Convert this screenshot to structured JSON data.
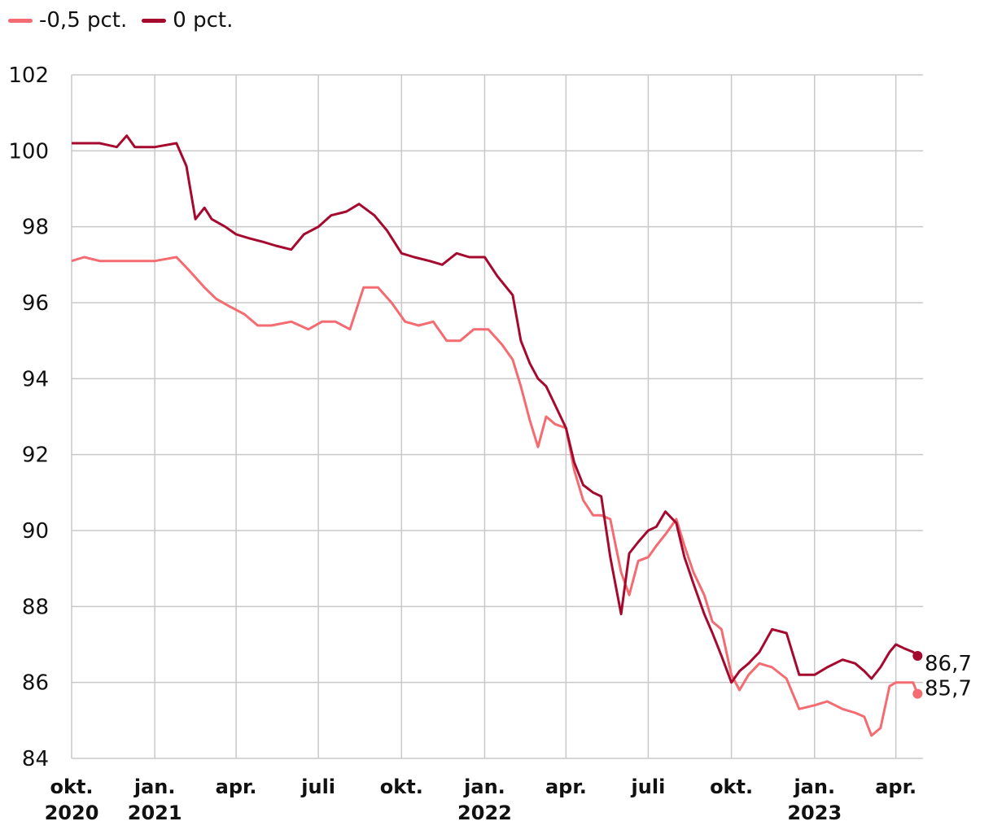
{
  "chart_data": {
    "type": "line",
    "legend": {
      "placement": "top-left",
      "items": [
        {
          "label": "-0,5 pct.",
          "color": "#f46b72"
        },
        {
          "label": "0 pct.",
          "color": "#a5092e"
        }
      ]
    },
    "ylim": [
      84,
      102
    ],
    "yticks": [
      84,
      86,
      88,
      90,
      92,
      94,
      96,
      98,
      100,
      102
    ],
    "xlim": [
      "2020-10-01",
      "2023-05-01"
    ],
    "xticks": [
      {
        "date": "2020-10-01",
        "label": "okt.",
        "year": "2020"
      },
      {
        "date": "2021-01-01",
        "label": "jan.",
        "year": "2021"
      },
      {
        "date": "2021-04-01",
        "label": "apr.",
        "year": ""
      },
      {
        "date": "2021-07-01",
        "label": "juli",
        "year": ""
      },
      {
        "date": "2021-10-01",
        "label": "okt.",
        "year": ""
      },
      {
        "date": "2022-01-01",
        "label": "jan.",
        "year": "2022"
      },
      {
        "date": "2022-04-01",
        "label": "apr.",
        "year": ""
      },
      {
        "date": "2022-07-01",
        "label": "juli",
        "year": ""
      },
      {
        "date": "2022-10-01",
        "label": "okt.",
        "year": ""
      },
      {
        "date": "2023-01-01",
        "label": "jan.",
        "year": "2023"
      },
      {
        "date": "2023-04-01",
        "label": "apr.",
        "year": ""
      }
    ],
    "grid": true,
    "series": [
      {
        "name": "-0,5 pct.",
        "color": "#f46b72",
        "end_label": "85,7",
        "x": [
          "2020-10-01",
          "2020-10-15",
          "2020-11-01",
          "2020-12-01",
          "2021-01-01",
          "2021-01-25",
          "2021-02-10",
          "2021-02-25",
          "2021-03-10",
          "2021-03-25",
          "2021-04-10",
          "2021-04-25",
          "2021-05-10",
          "2021-06-01",
          "2021-06-20",
          "2021-07-05",
          "2021-07-20",
          "2021-08-05",
          "2021-08-20",
          "2021-09-05",
          "2021-09-20",
          "2021-10-05",
          "2021-10-20",
          "2021-11-05",
          "2021-11-20",
          "2021-12-05",
          "2021-12-20",
          "2022-01-05",
          "2022-01-20",
          "2022-02-01",
          "2022-02-10",
          "2022-02-20",
          "2022-03-01",
          "2022-03-10",
          "2022-03-20",
          "2022-04-01",
          "2022-04-10",
          "2022-04-20",
          "2022-05-01",
          "2022-05-10",
          "2022-05-20",
          "2022-06-01",
          "2022-06-10",
          "2022-06-20",
          "2022-07-01",
          "2022-07-10",
          "2022-07-20",
          "2022-08-01",
          "2022-08-10",
          "2022-08-20",
          "2022-09-01",
          "2022-09-10",
          "2022-09-20",
          "2022-10-01",
          "2022-10-10",
          "2022-10-20",
          "2022-11-01",
          "2022-11-15",
          "2022-12-01",
          "2022-12-15",
          "2023-01-01",
          "2023-01-15",
          "2023-02-01",
          "2023-02-15",
          "2023-02-25",
          "2023-03-05",
          "2023-03-15",
          "2023-03-25",
          "2023-04-01",
          "2023-04-10",
          "2023-04-20",
          "2023-04-25"
        ],
        "values": [
          97.1,
          97.2,
          97.1,
          97.1,
          97.1,
          97.2,
          96.8,
          96.4,
          96.1,
          95.9,
          95.7,
          95.4,
          95.4,
          95.5,
          95.3,
          95.5,
          95.5,
          95.3,
          96.4,
          96.4,
          96.0,
          95.5,
          95.4,
          95.5,
          95.0,
          95.0,
          95.3,
          95.3,
          94.9,
          94.5,
          93.8,
          92.9,
          92.2,
          93.0,
          92.8,
          92.7,
          91.6,
          90.8,
          90.4,
          90.4,
          90.3,
          88.9,
          88.3,
          89.2,
          89.3,
          89.6,
          89.9,
          90.3,
          89.6,
          88.9,
          88.3,
          87.6,
          87.4,
          86.2,
          85.8,
          86.2,
          86.5,
          86.4,
          86.1,
          85.3,
          85.4,
          85.5,
          85.3,
          85.2,
          85.1,
          84.6,
          84.8,
          85.9,
          86.0,
          86.0,
          86.0,
          85.7
        ]
      },
      {
        "name": "0 pct.",
        "color": "#a5092e",
        "end_label": "86,7",
        "x": [
          "2020-10-01",
          "2020-10-15",
          "2020-11-01",
          "2020-11-20",
          "2020-12-01",
          "2020-12-10",
          "2020-12-20",
          "2021-01-01",
          "2021-01-25",
          "2021-02-05",
          "2021-02-15",
          "2021-02-25",
          "2021-03-05",
          "2021-03-20",
          "2021-04-01",
          "2021-04-15",
          "2021-05-01",
          "2021-05-15",
          "2021-06-01",
          "2021-06-15",
          "2021-07-01",
          "2021-07-15",
          "2021-08-01",
          "2021-08-15",
          "2021-09-01",
          "2021-09-15",
          "2021-10-01",
          "2021-10-15",
          "2021-11-01",
          "2021-11-15",
          "2021-12-01",
          "2021-12-15",
          "2022-01-01",
          "2022-01-15",
          "2022-02-01",
          "2022-02-10",
          "2022-02-20",
          "2022-03-01",
          "2022-03-10",
          "2022-03-20",
          "2022-04-01",
          "2022-04-10",
          "2022-04-20",
          "2022-05-01",
          "2022-05-10",
          "2022-05-20",
          "2022-06-01",
          "2022-06-10",
          "2022-06-20",
          "2022-07-01",
          "2022-07-10",
          "2022-07-20",
          "2022-08-01",
          "2022-08-10",
          "2022-08-20",
          "2022-09-01",
          "2022-09-10",
          "2022-09-20",
          "2022-10-01",
          "2022-10-10",
          "2022-10-20",
          "2022-11-01",
          "2022-11-15",
          "2022-12-01",
          "2022-12-15",
          "2023-01-01",
          "2023-01-15",
          "2023-02-01",
          "2023-02-15",
          "2023-02-25",
          "2023-03-05",
          "2023-03-15",
          "2023-03-25",
          "2023-04-01",
          "2023-04-10",
          "2023-04-20",
          "2023-04-25"
        ],
        "values": [
          100.2,
          100.2,
          100.2,
          100.1,
          100.4,
          100.1,
          100.1,
          100.1,
          100.2,
          99.6,
          98.2,
          98.5,
          98.2,
          98.0,
          97.8,
          97.7,
          97.6,
          97.5,
          97.4,
          97.8,
          98.0,
          98.3,
          98.4,
          98.6,
          98.3,
          97.9,
          97.3,
          97.2,
          97.1,
          97.0,
          97.3,
          97.2,
          97.2,
          96.7,
          96.2,
          95.0,
          94.4,
          94.0,
          93.8,
          93.3,
          92.7,
          91.8,
          91.2,
          91.0,
          90.9,
          89.3,
          87.8,
          89.4,
          89.7,
          90.0,
          90.1,
          90.5,
          90.2,
          89.3,
          88.6,
          87.8,
          87.3,
          86.7,
          86.0,
          86.3,
          86.5,
          86.8,
          87.4,
          87.3,
          86.2,
          86.2,
          86.4,
          86.6,
          86.5,
          86.3,
          86.1,
          86.4,
          86.8,
          87.0,
          86.9,
          86.8,
          86.7
        ]
      }
    ]
  }
}
